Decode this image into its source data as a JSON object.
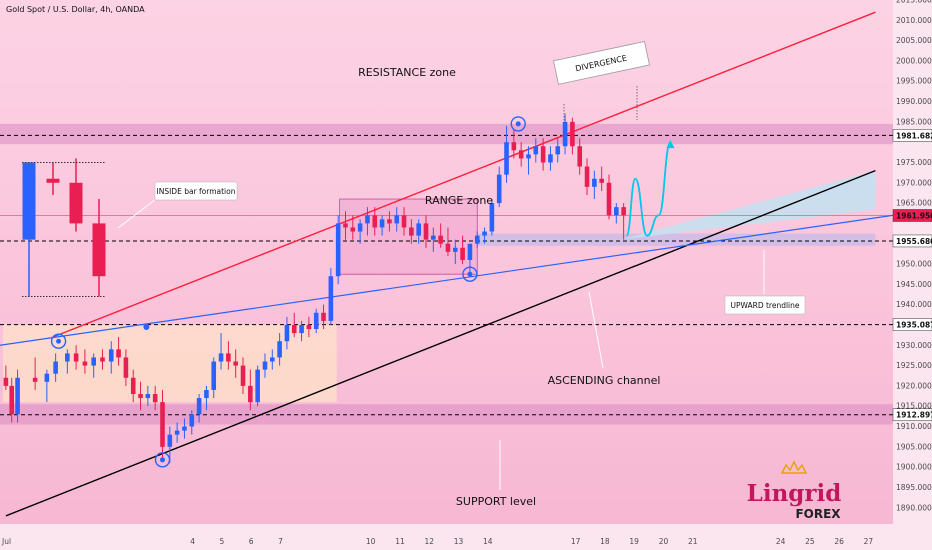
{
  "header": {
    "symbol_title": "Gold Spot / U.S. Dollar, 4h, OANDA"
  },
  "colors": {
    "bull": "#2962ff",
    "bear": "#e91e53",
    "resistance_line": "#ff1e3c",
    "channel_line": "#000000",
    "trendline": "#2962ff",
    "zone": "#d88ac2",
    "arrow": "#00c8e8"
  },
  "annotations": {
    "resistance": "RESISTANCE zone",
    "range": "RANGE zone",
    "divergence": "DIVERGENCE",
    "inside_bar": "INSIDE bar formation",
    "upward_trendline": "UPWARD trendline",
    "ascending_channel": "ASCENDING channel",
    "support": "SUPPORT level"
  },
  "logo": {
    "brand": "Lingrid",
    "sub": "FOREX"
  },
  "chart_data": {
    "type": "candlestick",
    "title": "Gold Spot / U.S. Dollar, 4h, OANDA",
    "xlim": [
      -2.6,
      27.9
    ],
    "ylim": [
      1886,
      2015
    ],
    "x_ticks": [
      {
        "value": -2.6,
        "label": "Jul"
      },
      {
        "value": 4,
        "label": "4"
      },
      {
        "value": 5,
        "label": "5"
      },
      {
        "value": 6,
        "label": "6"
      },
      {
        "value": 7,
        "label": "7"
      },
      {
        "value": 10,
        "label": "10"
      },
      {
        "value": 11,
        "label": "11"
      },
      {
        "value": 12,
        "label": "12"
      },
      {
        "value": 13,
        "label": "13"
      },
      {
        "value": 14,
        "label": "14"
      },
      {
        "value": 17,
        "label": "17"
      },
      {
        "value": 18,
        "label": "18"
      },
      {
        "value": 19,
        "label": "19"
      },
      {
        "value": 20,
        "label": "20"
      },
      {
        "value": 21,
        "label": "21"
      },
      {
        "value": 24,
        "label": "24"
      },
      {
        "value": 25,
        "label": "25"
      },
      {
        "value": 26,
        "label": "26"
      },
      {
        "value": 27,
        "label": "27"
      }
    ],
    "y_ticks": [
      1890,
      1895,
      1900,
      1905,
      1910,
      1915,
      1920,
      1925,
      1930,
      1940,
      1945,
      1950,
      1965,
      1970,
      1975,
      1985,
      1990,
      1995,
      2000,
      2005,
      2010,
      2015
    ],
    "y_tick_labels": [
      "1890.000",
      "1895.000",
      "1900.000",
      "1905.000",
      "1910.000",
      "1915.000",
      "1920.000",
      "1925.000",
      "1930.000",
      "1940.000",
      "1945.000",
      "1950.000",
      "1965.000",
      "1970.000",
      "1975.000",
      "1985.000",
      "1990.000",
      "1995.000",
      "2000.000",
      "2005.000",
      "2010.000",
      "2015.000"
    ],
    "price_levels": [
      {
        "value": 1981.682,
        "label": "1981.682",
        "color": "#000000"
      },
      {
        "value": 1961.95,
        "label": "1961.950",
        "color": "#e91e53"
      },
      {
        "value": 1955.68,
        "label": "1955.680",
        "color": "#000000"
      },
      {
        "value": 1935.087,
        "label": "1935.087",
        "color": "#000000"
      },
      {
        "value": 1912.897,
        "label": "1912.897",
        "color": "#000000"
      }
    ],
    "zones": [
      {
        "name": "resistance",
        "from": 1979.5,
        "to": 1984.5
      },
      {
        "name": "support",
        "from": 1910.5,
        "to": 1915.5
      },
      {
        "name": "range",
        "from": 1947.5,
        "to": 1966
      }
    ],
    "lines": [
      {
        "name": "resistance-line",
        "from": [
          -0.8,
          1932
        ],
        "to": [
          27.3,
          2012
        ]
      },
      {
        "name": "channel-line",
        "from": [
          -2.4,
          1888
        ],
        "to": [
          27.3,
          1973
        ]
      },
      {
        "name": "upward-trendline",
        "from": [
          -2.6,
          1930
        ],
        "to": [
          27.9,
          1962
        ]
      }
    ],
    "candles": [
      {
        "x": -2.4,
        "o": 1922,
        "h": 1925,
        "l": 1919,
        "c": 1920
      },
      {
        "x": -2.2,
        "o": 1920,
        "h": 1922,
        "l": 1911,
        "c": 1913
      },
      {
        "x": -2.0,
        "o": 1913,
        "h": 1924,
        "l": 1911,
        "c": 1922
      },
      {
        "x": -1.4,
        "o": 1922,
        "h": 1927,
        "l": 1919,
        "c": 1921
      },
      {
        "x": -1.0,
        "o": 1921,
        "h": 1924,
        "l": 1916,
        "c": 1923
      },
      {
        "x": -0.7,
        "o": 1923,
        "h": 1928,
        "l": 1921,
        "c": 1926
      },
      {
        "x": -0.3,
        "o": 1926,
        "h": 1929,
        "l": 1923,
        "c": 1928
      },
      {
        "x": 0.0,
        "o": 1928,
        "h": 1930,
        "l": 1924,
        "c": 1926
      },
      {
        "x": 0.3,
        "o": 1926,
        "h": 1929,
        "l": 1923,
        "c": 1925
      },
      {
        "x": 0.6,
        "o": 1925,
        "h": 1928,
        "l": 1922,
        "c": 1927
      },
      {
        "x": 0.9,
        "o": 1927,
        "h": 1929,
        "l": 1924,
        "c": 1926
      },
      {
        "x": 1.2,
        "o": 1926,
        "h": 1931,
        "l": 1923,
        "c": 1929
      },
      {
        "x": 1.45,
        "o": 1929,
        "h": 1932,
        "l": 1925,
        "c": 1927
      },
      {
        "x": 1.7,
        "o": 1927,
        "h": 1929,
        "l": 1920,
        "c": 1922
      },
      {
        "x": 1.95,
        "o": 1922,
        "h": 1924,
        "l": 1916,
        "c": 1918
      },
      {
        "x": 2.2,
        "o": 1918,
        "h": 1921,
        "l": 1914,
        "c": 1917
      },
      {
        "x": 2.45,
        "o": 1917,
        "h": 1920,
        "l": 1915,
        "c": 1918
      },
      {
        "x": 2.7,
        "o": 1918,
        "h": 1920,
        "l": 1914,
        "c": 1916
      },
      {
        "x": 2.95,
        "o": 1916,
        "h": 1919,
        "l": 1902,
        "c": 1905
      },
      {
        "x": 3.2,
        "o": 1905,
        "h": 1910,
        "l": 1901,
        "c": 1908
      },
      {
        "x": 3.45,
        "o": 1908,
        "h": 1911,
        "l": 1906,
        "c": 1909
      },
      {
        "x": 3.7,
        "o": 1909,
        "h": 1912,
        "l": 1907,
        "c": 1910
      },
      {
        "x": 3.95,
        "o": 1910,
        "h": 1914,
        "l": 1908,
        "c": 1913
      },
      {
        "x": 4.2,
        "o": 1913,
        "h": 1918,
        "l": 1911,
        "c": 1917
      },
      {
        "x": 4.45,
        "o": 1917,
        "h": 1920,
        "l": 1914,
        "c": 1919
      },
      {
        "x": 4.7,
        "o": 1919,
        "h": 1927,
        "l": 1917,
        "c": 1926
      },
      {
        "x": 4.95,
        "o": 1926,
        "h": 1933,
        "l": 1924,
        "c": 1928
      },
      {
        "x": 5.2,
        "o": 1928,
        "h": 1931,
        "l": 1924,
        "c": 1926
      },
      {
        "x": 5.45,
        "o": 1926,
        "h": 1929,
        "l": 1922,
        "c": 1925
      },
      {
        "x": 5.7,
        "o": 1925,
        "h": 1927,
        "l": 1918,
        "c": 1920
      },
      {
        "x": 5.95,
        "o": 1920,
        "h": 1924,
        "l": 1914,
        "c": 1916
      },
      {
        "x": 6.2,
        "o": 1916,
        "h": 1925,
        "l": 1915,
        "c": 1924
      },
      {
        "x": 6.45,
        "o": 1924,
        "h": 1928,
        "l": 1922,
        "c": 1926
      },
      {
        "x": 6.7,
        "o": 1926,
        "h": 1929,
        "l": 1924,
        "c": 1927
      },
      {
        "x": 6.95,
        "o": 1927,
        "h": 1933,
        "l": 1925,
        "c": 1931
      },
      {
        "x": 7.2,
        "o": 1931,
        "h": 1937,
        "l": 1929,
        "c": 1935
      },
      {
        "x": 7.45,
        "o": 1935,
        "h": 1938,
        "l": 1932,
        "c": 1933
      },
      {
        "x": 7.7,
        "o": 1933,
        "h": 1936,
        "l": 1931,
        "c": 1935
      },
      {
        "x": 7.95,
        "o": 1935,
        "h": 1937,
        "l": 1932,
        "c": 1934
      },
      {
        "x": 8.2,
        "o": 1934,
        "h": 1939,
        "l": 1933,
        "c": 1938
      },
      {
        "x": 8.45,
        "o": 1938,
        "h": 1940,
        "l": 1934,
        "c": 1936
      },
      {
        "x": 8.7,
        "o": 1936,
        "h": 1949,
        "l": 1935,
        "c": 1947
      },
      {
        "x": 8.95,
        "o": 1947,
        "h": 1962,
        "l": 1945,
        "c": 1960
      },
      {
        "x": 9.2,
        "o": 1960,
        "h": 1963,
        "l": 1956,
        "c": 1959
      },
      {
        "x": 9.45,
        "o": 1959,
        "h": 1962,
        "l": 1956,
        "c": 1958
      },
      {
        "x": 9.7,
        "o": 1958,
        "h": 1961,
        "l": 1955,
        "c": 1960
      },
      {
        "x": 9.95,
        "o": 1960,
        "h": 1964,
        "l": 1957,
        "c": 1962
      },
      {
        "x": 10.2,
        "o": 1962,
        "h": 1964,
        "l": 1957,
        "c": 1959
      },
      {
        "x": 10.45,
        "o": 1959,
        "h": 1962,
        "l": 1957,
        "c": 1961
      },
      {
        "x": 10.7,
        "o": 1961,
        "h": 1963,
        "l": 1958,
        "c": 1960
      },
      {
        "x": 10.95,
        "o": 1960,
        "h": 1964,
        "l": 1958,
        "c": 1962
      },
      {
        "x": 11.2,
        "o": 1962,
        "h": 1964,
        "l": 1957,
        "c": 1959
      },
      {
        "x": 11.45,
        "o": 1959,
        "h": 1961,
        "l": 1955,
        "c": 1957
      },
      {
        "x": 11.7,
        "o": 1957,
        "h": 1961,
        "l": 1955,
        "c": 1960
      },
      {
        "x": 11.95,
        "o": 1960,
        "h": 1962,
        "l": 1954,
        "c": 1956
      },
      {
        "x": 12.2,
        "o": 1956,
        "h": 1959,
        "l": 1953,
        "c": 1957
      },
      {
        "x": 12.45,
        "o": 1957,
        "h": 1960,
        "l": 1954,
        "c": 1955
      },
      {
        "x": 12.7,
        "o": 1955,
        "h": 1959,
        "l": 1952,
        "c": 1953
      },
      {
        "x": 12.95,
        "o": 1953,
        "h": 1956,
        "l": 1950,
        "c": 1954
      },
      {
        "x": 13.2,
        "o": 1954,
        "h": 1957,
        "l": 1950,
        "c": 1951
      },
      {
        "x": 13.45,
        "o": 1951,
        "h": 1955,
        "l": 1947,
        "c": 1955
      },
      {
        "x": 13.7,
        "o": 1955,
        "h": 1958,
        "l": 1954,
        "c": 1957
      },
      {
        "x": 13.95,
        "o": 1957,
        "h": 1959,
        "l": 1955,
        "c": 1958
      },
      {
        "x": 14.2,
        "o": 1958,
        "h": 1966,
        "l": 1957,
        "c": 1965
      },
      {
        "x": 14.45,
        "o": 1965,
        "h": 1974,
        "l": 1964,
        "c": 1972
      },
      {
        "x": 14.7,
        "o": 1972,
        "h": 1984,
        "l": 1970,
        "c": 1980
      },
      {
        "x": 14.95,
        "o": 1980,
        "h": 1983,
        "l": 1976,
        "c": 1978
      },
      {
        "x": 15.2,
        "o": 1978,
        "h": 1980,
        "l": 1974,
        "c": 1976
      },
      {
        "x": 15.45,
        "o": 1976,
        "h": 1979,
        "l": 1972,
        "c": 1977
      },
      {
        "x": 15.7,
        "o": 1977,
        "h": 1981,
        "l": 1975,
        "c": 1979
      },
      {
        "x": 15.95,
        "o": 1979,
        "h": 1981,
        "l": 1973,
        "c": 1975
      },
      {
        "x": 16.2,
        "o": 1975,
        "h": 1979,
        "l": 1973,
        "c": 1977
      },
      {
        "x": 16.45,
        "o": 1977,
        "h": 1981,
        "l": 1975,
        "c": 1979
      },
      {
        "x": 16.7,
        "o": 1979,
        "h": 1987,
        "l": 1977,
        "c": 1985
      },
      {
        "x": 16.95,
        "o": 1985,
        "h": 1986,
        "l": 1977,
        "c": 1979
      },
      {
        "x": 17.2,
        "o": 1979,
        "h": 1981,
        "l": 1972,
        "c": 1974
      },
      {
        "x": 17.45,
        "o": 1974,
        "h": 1976,
        "l": 1967,
        "c": 1969
      },
      {
        "x": 17.7,
        "o": 1969,
        "h": 1973,
        "l": 1966,
        "c": 1971
      },
      {
        "x": 17.95,
        "o": 1971,
        "h": 1974,
        "l": 1968,
        "c": 1970
      },
      {
        "x": 18.2,
        "o": 1970,
        "h": 1972,
        "l": 1961,
        "c": 1962
      },
      {
        "x": 18.45,
        "o": 1962,
        "h": 1965,
        "l": 1960,
        "c": 1964
      },
      {
        "x": 18.7,
        "o": 1964,
        "h": 1965,
        "l": 1956,
        "c": 1962
      }
    ],
    "inset_candles": [
      {
        "o": 1956,
        "h": 1975,
        "l": 1942,
        "c": 1975
      },
      {
        "o": 1971,
        "h": 1975,
        "l": 1967,
        "c": 1970
      },
      {
        "o": 1970,
        "h": 1976,
        "l": 1958,
        "c": 1960
      },
      {
        "o": 1960,
        "h": 1966,
        "l": 1942,
        "c": 1947
      }
    ],
    "projection": [
      [
        18.8,
        1957
      ],
      [
        19.1,
        1971
      ],
      [
        19.5,
        1957
      ],
      [
        19.9,
        1962
      ],
      [
        20.3,
        1980
      ]
    ]
  }
}
